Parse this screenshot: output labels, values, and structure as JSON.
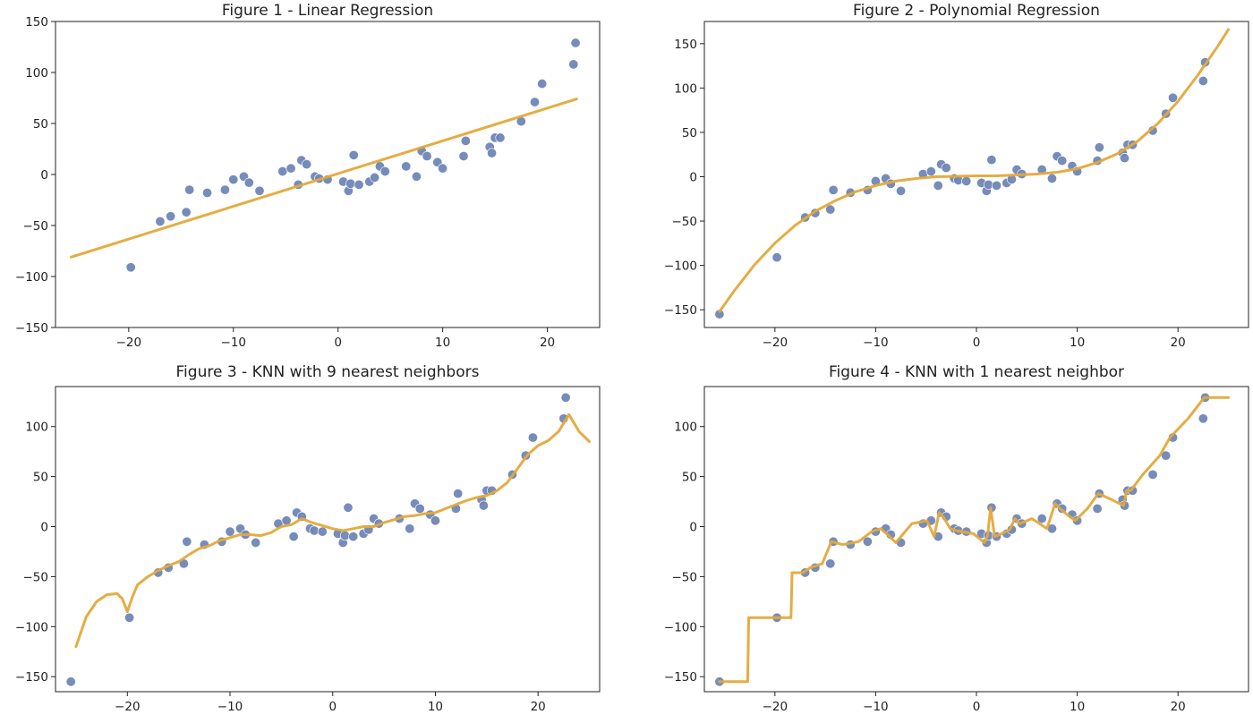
{
  "colors": {
    "points": "#6f86b6",
    "fit": "#e3a93a"
  },
  "chart_data": [
    {
      "type": "scatter",
      "title": "Figure 1 - Linear Regression",
      "xlim": [
        -27,
        25
      ],
      "ylim": [
        -150,
        150
      ],
      "xticks": [
        -20,
        -10,
        0,
        10,
        20
      ],
      "yticks": [
        -150,
        -100,
        -50,
        0,
        50,
        100,
        150
      ],
      "ytick_labels": [
        "−150",
        "−100",
        "−50",
        "0",
        "50",
        "100",
        "150"
      ],
      "xtick_labels": [
        "−20",
        "−10",
        "0",
        "10",
        "20"
      ],
      "points": {
        "x": [
          -19.8,
          -17,
          -16,
          -14.5,
          -14.2,
          -12.5,
          -10.8,
          -10,
          -9,
          -8.5,
          -7.5,
          -5.3,
          -4.5,
          -3.8,
          -3.5,
          -3,
          -2.2,
          -1.8,
          -1,
          0.5,
          1,
          1.2,
          1.5,
          2,
          3,
          3.5,
          4,
          4.5,
          6.5,
          7.5,
          8,
          8.5,
          9.5,
          10,
          12,
          12.2,
          14.5,
          14.7,
          15,
          15.5,
          17.5,
          18.8,
          19.5,
          22.5,
          22.7
        ],
        "y": [
          -91,
          -46,
          -41,
          -37,
          -15,
          -18,
          -15,
          -5,
          -2,
          -8,
          -16,
          3,
          6,
          -10,
          14,
          10,
          -2,
          -4,
          -5,
          -7,
          -16,
          -9,
          19,
          -10,
          -7,
          -3,
          8,
          3,
          8,
          -2,
          23,
          18,
          12,
          6,
          18,
          33,
          27,
          21,
          36,
          36,
          52,
          71,
          89,
          108,
          129
        ]
      },
      "fit": {
        "x": [
          -25.5,
          22.8
        ],
        "y": [
          -81,
          74
        ]
      }
    },
    {
      "type": "scatter",
      "title": "Figure 2 - Polynomial Regression",
      "xlim": [
        -27,
        27
      ],
      "ylim": [
        -170,
        175
      ],
      "xticks": [
        -20,
        -10,
        0,
        10,
        20
      ],
      "yticks": [
        -150,
        -100,
        -50,
        0,
        50,
        100,
        150
      ],
      "ytick_labels": [
        "−150",
        "−100",
        "−50",
        "0",
        "50",
        "100",
        "150"
      ],
      "xtick_labels": [
        "−20",
        "−10",
        "0",
        "10",
        "20"
      ],
      "points": {
        "x": [
          -25.5,
          -19.8,
          -17,
          -16,
          -14.5,
          -14.2,
          -12.5,
          -10.8,
          -10,
          -9,
          -8.5,
          -7.5,
          -5.3,
          -4.5,
          -3.8,
          -3.5,
          -3,
          -2.2,
          -1.8,
          -1,
          0.5,
          1,
          1.2,
          1.5,
          2,
          3,
          3.5,
          4,
          4.5,
          6.5,
          7.5,
          8,
          8.5,
          9.5,
          10,
          12,
          12.2,
          14.5,
          14.7,
          15,
          15.5,
          17.5,
          18.8,
          19.5,
          22.5,
          22.7
        ],
        "y": [
          -155,
          -91,
          -46,
          -41,
          -37,
          -15,
          -18,
          -15,
          -5,
          -2,
          -8,
          -16,
          3,
          6,
          -10,
          14,
          10,
          -2,
          -4,
          -5,
          -7,
          -16,
          -9,
          19,
          -10,
          -7,
          -3,
          8,
          3,
          8,
          -2,
          23,
          18,
          12,
          6,
          18,
          33,
          27,
          21,
          36,
          36,
          52,
          71,
          89,
          108,
          129
        ]
      },
      "fit": {
        "x": [
          -25.5,
          -24,
          -22,
          -20,
          -18,
          -16,
          -14,
          -12,
          -10,
          -8,
          -6,
          -4,
          -2,
          0,
          2,
          4,
          6,
          8,
          10,
          12,
          14,
          16,
          18,
          20,
          22,
          24,
          25
        ],
        "y": [
          -152,
          -128,
          -99,
          -75,
          -55,
          -39,
          -27,
          -17,
          -10,
          -5,
          -2,
          0,
          0.5,
          1,
          1,
          2,
          3,
          5,
          9,
          16,
          26,
          40,
          60,
          85,
          115,
          148,
          166
        ]
      }
    },
    {
      "type": "scatter",
      "title": "Figure 3 - KNN with 9 nearest neighbors",
      "xlim": [
        -27,
        26
      ],
      "ylim": [
        -165,
        140
      ],
      "xticks": [
        -20,
        -10,
        0,
        10,
        20
      ],
      "yticks": [
        -150,
        -100,
        -50,
        0,
        50,
        100
      ],
      "ytick_labels": [
        "−150",
        "−100",
        "−50",
        "0",
        "50",
        "100"
      ],
      "xtick_labels": [
        "−20",
        "−10",
        "0",
        "10",
        "20"
      ],
      "points": {
        "x": [
          -25.5,
          -19.8,
          -17,
          -16,
          -14.5,
          -14.2,
          -12.5,
          -10.8,
          -10,
          -9,
          -8.5,
          -7.5,
          -5.3,
          -4.5,
          -3.8,
          -3.5,
          -3,
          -2.2,
          -1.8,
          -1,
          0.5,
          1,
          1.2,
          1.5,
          2,
          3,
          3.5,
          4,
          4.5,
          6.5,
          7.5,
          8,
          8.5,
          9.5,
          10,
          12,
          12.2,
          14.5,
          14.7,
          15,
          15.5,
          17.5,
          18.8,
          19.5,
          22.5,
          22.7
        ],
        "y": [
          -155,
          -91,
          -46,
          -41,
          -37,
          -15,
          -18,
          -15,
          -5,
          -2,
          -8,
          -16,
          3,
          6,
          -10,
          14,
          10,
          -2,
          -4,
          -5,
          -7,
          -16,
          -9,
          19,
          -10,
          -7,
          -3,
          8,
          3,
          8,
          -2,
          23,
          18,
          12,
          6,
          18,
          33,
          27,
          21,
          36,
          36,
          52,
          71,
          89,
          108,
          129
        ]
      },
      "fit": {
        "x": [
          -25,
          -24,
          -23,
          -22,
          -21,
          -20.5,
          -20,
          -19.5,
          -19,
          -18,
          -17,
          -16,
          -15,
          -14,
          -13,
          -12,
          -11,
          -10,
          -9,
          -8,
          -7,
          -6,
          -5,
          -4,
          -3,
          -2,
          -1,
          0,
          1,
          2,
          3,
          4,
          5,
          6,
          7,
          8,
          9,
          10,
          11,
          12,
          13,
          14,
          15,
          16,
          17,
          18,
          19,
          20,
          21,
          22,
          23,
          24,
          25
        ],
        "y": [
          -120,
          -90,
          -75,
          -68,
          -67,
          -72,
          -85,
          -70,
          -58,
          -50,
          -44,
          -39,
          -35,
          -28,
          -22,
          -19,
          -14,
          -11,
          -8,
          -8,
          -9,
          -6,
          0,
          2,
          8,
          4,
          1,
          -2,
          -4,
          -2,
          0,
          0,
          4,
          7,
          10,
          11,
          13,
          14,
          18,
          22,
          26,
          29,
          31,
          36,
          44,
          58,
          72,
          81,
          86,
          95,
          112,
          95,
          85
        ]
      }
    },
    {
      "type": "scatter",
      "title": "Figure 4 - KNN with 1 nearest neighbor",
      "xlim": [
        -27,
        27
      ],
      "ylim": [
        -165,
        140
      ],
      "xticks": [
        -20,
        -10,
        0,
        10,
        20
      ],
      "yticks": [
        -150,
        -100,
        -50,
        0,
        50,
        100
      ],
      "ytick_labels": [
        "−150",
        "−100",
        "−50",
        "0",
        "50",
        "100"
      ],
      "xtick_labels": [
        "−20",
        "−10",
        "0",
        "10",
        "20"
      ],
      "points": {
        "x": [
          -25.5,
          -19.8,
          -17,
          -16,
          -14.5,
          -14.2,
          -12.5,
          -10.8,
          -10,
          -9,
          -8.5,
          -7.5,
          -5.3,
          -4.5,
          -3.8,
          -3.5,
          -3,
          -2.2,
          -1.8,
          -1,
          0.5,
          1,
          1.2,
          1.5,
          2,
          3,
          3.5,
          4,
          4.5,
          6.5,
          7.5,
          8,
          8.5,
          9.5,
          10,
          12,
          12.2,
          14.5,
          14.7,
          15,
          15.5,
          17.5,
          18.8,
          19.5,
          22.5,
          22.7
        ],
        "y": [
          -155,
          -91,
          -46,
          -41,
          -37,
          -15,
          -18,
          -15,
          -5,
          -2,
          -8,
          -16,
          3,
          6,
          -10,
          14,
          10,
          -2,
          -4,
          -5,
          -7,
          -16,
          -9,
          19,
          -10,
          -7,
          -3,
          8,
          3,
          8,
          -2,
          23,
          18,
          12,
          6,
          18,
          33,
          27,
          21,
          36,
          36,
          52,
          71,
          89,
          108,
          129
        ]
      },
      "fit": {
        "x": [
          -25.5,
          -22.7,
          -22.6,
          -20.2,
          -18.4,
          -18.3,
          -17.2,
          -16.5,
          -15.3,
          -14.4,
          -13.3,
          -11.7,
          -10.4,
          -9.5,
          -8.8,
          -8,
          -6.4,
          -4.9,
          -4.2,
          -3.7,
          -3.3,
          -2.6,
          -2,
          -1.4,
          -0.3,
          0.8,
          1.1,
          1.4,
          1.8,
          2.5,
          3.3,
          3.8,
          4.3,
          5.5,
          7,
          7.8,
          8.3,
          9,
          9.8,
          11,
          12.1,
          13.4,
          14.6,
          14.9,
          15.3,
          16.5,
          18.2,
          19.2,
          21,
          22.6,
          25
        ],
        "y": [
          -155,
          -155,
          -91,
          -91,
          -91,
          -46,
          -46,
          -41,
          -37,
          -15,
          -18,
          -15,
          -5,
          -2,
          -8,
          -16,
          3,
          6,
          -10,
          14,
          10,
          -2,
          -4,
          -5,
          -7,
          -16,
          -9,
          19,
          -10,
          -7,
          -3,
          8,
          3,
          8,
          -2,
          23,
          18,
          12,
          6,
          18,
          33,
          27,
          21,
          36,
          36,
          52,
          71,
          89,
          108,
          129,
          129
        ]
      }
    }
  ]
}
